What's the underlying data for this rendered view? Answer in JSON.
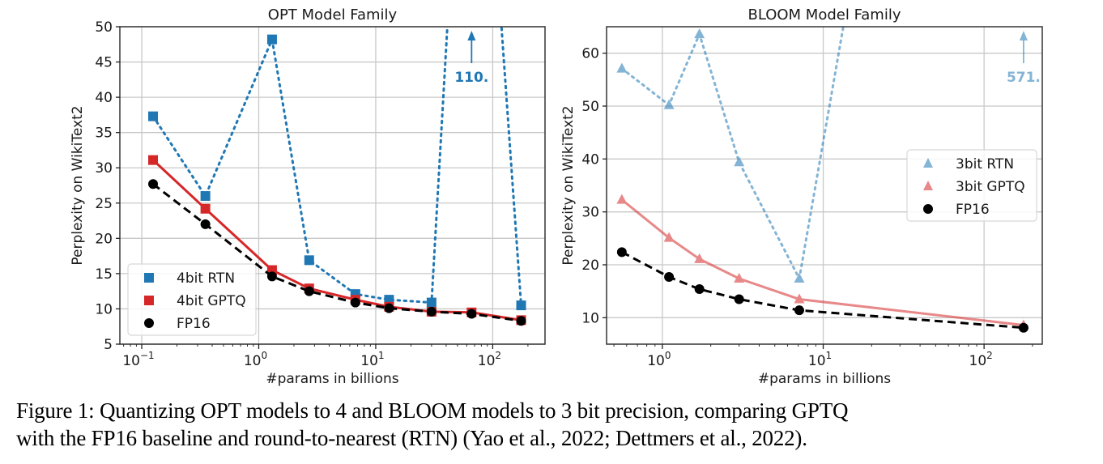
{
  "caption": {
    "line1": "Figure 1: Quantizing OPT models to 4 and BLOOM models to 3 bit precision, comparing GPTQ",
    "line2": "with the FP16 baseline and round-to-nearest (RTN) (Yao et al., 2022; Dettmers et al., 2022)."
  },
  "chart_data": [
    {
      "type": "line",
      "title": "OPT Model Family",
      "xlabel": "#params in billions",
      "ylabel": "Perplexity on WikiText2",
      "xscale": "log",
      "xlim": [
        0.065,
        280
      ],
      "ylim": [
        5,
        50
      ],
      "xticks": [
        {
          "value": 0.1,
          "label": "10",
          "exp": "−1"
        },
        {
          "value": 1,
          "label": "10",
          "exp": "0"
        },
        {
          "value": 10,
          "label": "10",
          "exp": "1"
        },
        {
          "value": 100,
          "label": "10",
          "exp": "2"
        }
      ],
      "yticks": [
        5,
        10,
        15,
        20,
        25,
        30,
        35,
        40,
        45,
        50
      ],
      "grid": true,
      "legend_position": "lower-left",
      "x": [
        0.125,
        0.35,
        1.3,
        2.7,
        6.7,
        13,
        30,
        66,
        175
      ],
      "series": [
        {
          "name": "4bit RTN",
          "color": "#1f77b4",
          "marker": "square",
          "linestyle": "dotted",
          "alpha": 1.0,
          "values": [
            37.3,
            26.0,
            48.2,
            16.9,
            12.1,
            11.3,
            10.9,
            110.0,
            10.5
          ]
        },
        {
          "name": "4bit GPTQ",
          "color": "#d62728",
          "marker": "square",
          "linestyle": "solid",
          "alpha": 1.0,
          "values": [
            31.1,
            24.2,
            15.5,
            12.9,
            11.3,
            10.3,
            9.6,
            9.5,
            8.4
          ]
        },
        {
          "name": "FP16",
          "color": "#000000",
          "marker": "circle",
          "linestyle": "dashed",
          "alpha": 1.0,
          "values": [
            27.7,
            22.0,
            14.6,
            12.5,
            10.9,
            10.1,
            9.6,
            9.3,
            8.3
          ]
        }
      ],
      "annotation": {
        "text": "110.",
        "x": 66,
        "color": "#1f77b4"
      }
    },
    {
      "type": "line",
      "title": "BLOOM Model Family",
      "xlabel": "#params in billions",
      "ylabel": "Perplexity on WikiText2",
      "xscale": "log",
      "xlim": [
        0.45,
        230
      ],
      "ylim": [
        5,
        65
      ],
      "xticks": [
        {
          "value": 1,
          "label": "10",
          "exp": "0"
        },
        {
          "value": 10,
          "label": "10",
          "exp": "1"
        },
        {
          "value": 100,
          "label": "10",
          "exp": "2"
        }
      ],
      "yticks": [
        10,
        20,
        30,
        40,
        50,
        60
      ],
      "grid": true,
      "legend_position": "center-right",
      "x": [
        0.56,
        1.1,
        1.7,
        3,
        7.1,
        176
      ],
      "series": [
        {
          "name": "3bit RTN",
          "color": "#1f77b4",
          "marker": "triangle",
          "linestyle": "dotted",
          "alpha": 0.55,
          "values": [
            57.1,
            50.2,
            63.6,
            39.4,
            17.4,
            571.0
          ]
        },
        {
          "name": "3bit GPTQ",
          "color": "#d62728",
          "marker": "triangle",
          "linestyle": "solid",
          "alpha": 0.55,
          "values": [
            32.3,
            25.1,
            21.1,
            17.4,
            13.5,
            8.6
          ]
        },
        {
          "name": "FP16",
          "color": "#000000",
          "marker": "circle",
          "linestyle": "dashed",
          "alpha": 1.0,
          "values": [
            22.4,
            17.7,
            15.4,
            13.5,
            11.4,
            8.1
          ]
        }
      ],
      "annotation": {
        "text": "571.",
        "x": 176,
        "color": "#1f77b4"
      }
    }
  ]
}
